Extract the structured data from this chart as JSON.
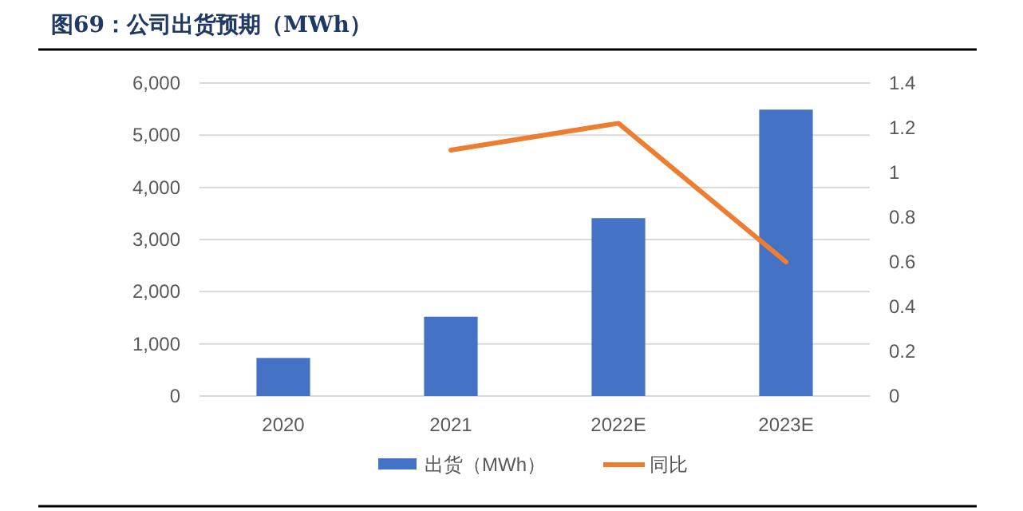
{
  "chart_data": {
    "type": "bar",
    "title": "图69：公司出货预期（MWh）",
    "categories": [
      "2020",
      "2021",
      "2022E",
      "2023E"
    ],
    "series": [
      {
        "name": "出货（MWh）",
        "color": "#4472c4",
        "values": [
          730,
          1520,
          3410,
          5490
        ]
      },
      {
        "name": "同比",
        "type": "line",
        "axis": "y2",
        "color": "#ed7d31",
        "values": [
          null,
          1.1,
          1.22,
          0.6
        ]
      }
    ],
    "ylim": [
      0,
      6000
    ],
    "yticks": [
      {
        "value": 0,
        "label": "0"
      },
      {
        "value": 1000,
        "label": "1,000"
      },
      {
        "value": 2000,
        "label": "2,000"
      },
      {
        "value": 3000,
        "label": "3,000"
      },
      {
        "value": 4000,
        "label": "4,000"
      },
      {
        "value": 5000,
        "label": "5,000"
      },
      {
        "value": 6000,
        "label": "6,000"
      }
    ],
    "y2lim": [
      0,
      1.4
    ],
    "y2ticks": [
      0,
      0.2,
      0.4,
      0.6,
      0.8,
      1,
      1.2,
      1.4
    ],
    "grid": "y",
    "legend": "bottom",
    "marker": "none",
    "line_style": "solid"
  }
}
